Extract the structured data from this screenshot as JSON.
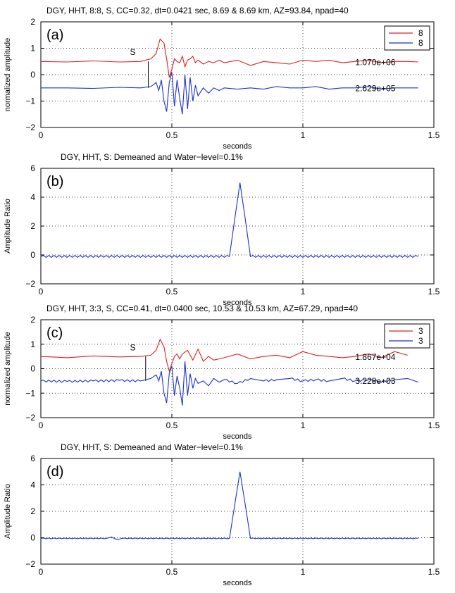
{
  "chart_data": [
    {
      "type": "line",
      "title": "DGY, HHT, 8:8, S, CC=0.32,  dt=0.0421 sec,  8.69 & 8.69 km, AZ=93.84, npad=40",
      "panel_label": "(a)",
      "xlabel": "seconds",
      "ylabel": "normalized amplitude",
      "xlim": [
        0,
        1.5
      ],
      "ylim": [
        -2,
        2
      ],
      "xticks": [
        0,
        0.5,
        1,
        1.5
      ],
      "xtick_labels": [
        "0",
        "0.5",
        "1",
        "1.5"
      ],
      "yticks": [
        -2,
        -1,
        0,
        1,
        2
      ],
      "ytick_labels": [
        "−2",
        "−1",
        "0",
        "1",
        "2"
      ],
      "grid": "dotted",
      "legend": {
        "position": "top-right",
        "entries": [
          {
            "label": "8",
            "color": "#e02020"
          },
          {
            "label": "8",
            "color": "#1f2fd0"
          }
        ]
      },
      "annotations": [
        {
          "text": "S",
          "x": 0.34,
          "y": 0.75
        },
        {
          "text": "1.070e+06",
          "x": 1.2,
          "y": 0.36
        },
        {
          "text": "2.629e+05",
          "x": 1.2,
          "y": -0.62
        }
      ],
      "pick_marker": {
        "x": 0.41,
        "y_from": -0.5,
        "y_to": 0.5
      },
      "series": [
        {
          "color": "#e02020",
          "x": [
            0.0,
            0.1,
            0.2,
            0.3,
            0.38,
            0.42,
            0.44,
            0.455,
            0.47,
            0.48,
            0.49,
            0.5,
            0.51,
            0.52,
            0.53,
            0.54,
            0.55,
            0.56,
            0.57,
            0.58,
            0.59,
            0.6,
            0.62,
            0.64,
            0.66,
            0.68,
            0.7,
            0.75,
            0.8,
            0.85,
            0.9,
            0.95,
            1.0,
            1.05,
            1.1,
            1.15,
            1.2,
            1.25,
            1.3,
            1.35,
            1.4,
            1.44
          ],
          "y": [
            0.5,
            0.48,
            0.52,
            0.48,
            0.5,
            0.6,
            0.8,
            1.35,
            1.2,
            0.6,
            -0.1,
            0.2,
            0.6,
            0.5,
            0.45,
            0.7,
            0.3,
            0.55,
            0.6,
            0.7,
            0.45,
            0.55,
            0.4,
            0.5,
            0.45,
            0.55,
            0.45,
            0.55,
            0.35,
            0.5,
            0.45,
            0.4,
            0.55,
            0.5,
            0.55,
            0.45,
            0.5,
            0.55,
            0.45,
            0.5,
            0.5,
            0.48
          ]
        },
        {
          "color": "#1f2fd0",
          "x": [
            0.0,
            0.1,
            0.2,
            0.3,
            0.38,
            0.42,
            0.44,
            0.45,
            0.46,
            0.47,
            0.48,
            0.49,
            0.5,
            0.51,
            0.52,
            0.53,
            0.54,
            0.55,
            0.56,
            0.57,
            0.58,
            0.59,
            0.6,
            0.62,
            0.64,
            0.66,
            0.68,
            0.7,
            0.75,
            0.8,
            0.85,
            0.9,
            0.95,
            1.0,
            1.05,
            1.1,
            1.15,
            1.2,
            1.25,
            1.3,
            1.35,
            1.4,
            1.44
          ],
          "y": [
            -0.5,
            -0.5,
            -0.52,
            -0.48,
            -0.5,
            -0.45,
            -0.3,
            -0.6,
            -0.2,
            -1.0,
            -1.4,
            -0.3,
            0.1,
            -1.2,
            -0.2,
            -0.9,
            -1.5,
            0.0,
            -1.3,
            -0.1,
            -1.0,
            -0.4,
            -0.8,
            -0.5,
            -0.7,
            -0.5,
            -0.6,
            -0.5,
            -0.55,
            -0.5,
            -0.55,
            -0.45,
            -0.5,
            -0.5,
            -0.45,
            -0.55,
            -0.5,
            -0.5,
            -0.45,
            -0.55,
            -0.5,
            -0.5,
            -0.5
          ]
        }
      ]
    },
    {
      "type": "line",
      "title": "DGY, HHT, S: Demeaned and Water−level=0.1%",
      "panel_label": "(b)",
      "xlabel": "seconds",
      "ylabel": "Amplitude Ratio",
      "xlim": [
        0,
        1.5
      ],
      "ylim": [
        -2,
        6
      ],
      "xticks": [
        0,
        0.5,
        1,
        1.5
      ],
      "xtick_labels": [
        "0",
        "0.5",
        "1",
        "1.5"
      ],
      "yticks": [
        -2,
        0,
        2,
        4,
        6
      ],
      "ytick_labels": [
        "−2",
        "0",
        "2",
        "4",
        "6"
      ],
      "grid": "dotted",
      "series": [
        {
          "color": "#1f2fd0",
          "x": [
            0.0,
            0.72,
            0.74,
            0.76,
            0.78,
            0.8,
            1.44
          ],
          "y": [
            -0.1,
            -0.1,
            2.5,
            5.0,
            2.5,
            -0.1,
            -0.1
          ],
          "oscillation": 0.12
        }
      ]
    },
    {
      "type": "line",
      "title": "DGY, HHT, 3:3, S, CC=0.41,  dt=0.0400 sec,  10.53 & 10.53 km, AZ=67.29, npad=40",
      "panel_label": "(c)",
      "xlabel": "seconds",
      "ylabel": "normalized amplitude",
      "xlim": [
        0,
        1.5
      ],
      "ylim": [
        -2,
        2
      ],
      "xticks": [
        0,
        0.5,
        1,
        1.5
      ],
      "xtick_labels": [
        "0",
        "0.5",
        "1",
        "1.5"
      ],
      "yticks": [
        -2,
        -1,
        0,
        1,
        2
      ],
      "ytick_labels": [
        "−2",
        "−1",
        "0",
        "1",
        "2"
      ],
      "grid": "dotted",
      "legend": {
        "position": "top-right",
        "entries": [
          {
            "label": "3",
            "color": "#e02020"
          },
          {
            "label": "3",
            "color": "#1f2fd0"
          }
        ]
      },
      "annotations": [
        {
          "text": "S",
          "x": 0.34,
          "y": 0.75
        },
        {
          "text": "1.867e+04",
          "x": 1.2,
          "y": 0.36
        },
        {
          "text": "3.228e+03",
          "x": 1.2,
          "y": -0.62
        }
      ],
      "pick_marker": {
        "x": 0.4,
        "y_from": -0.5,
        "y_to": 0.5
      },
      "series": [
        {
          "color": "#e02020",
          "x": [
            0.0,
            0.1,
            0.2,
            0.3,
            0.38,
            0.42,
            0.44,
            0.455,
            0.47,
            0.48,
            0.49,
            0.5,
            0.51,
            0.52,
            0.53,
            0.54,
            0.56,
            0.58,
            0.6,
            0.62,
            0.64,
            0.66,
            0.7,
            0.75,
            0.8,
            0.85,
            0.9,
            0.95,
            1.0,
            1.05,
            1.1,
            1.15,
            1.2,
            1.25,
            1.3,
            1.35,
            1.4
          ],
          "y": [
            0.5,
            0.45,
            0.52,
            0.48,
            0.5,
            0.55,
            0.75,
            1.2,
            0.9,
            0.3,
            -0.1,
            0.2,
            0.5,
            0.6,
            0.4,
            0.6,
            0.75,
            0.35,
            0.8,
            0.3,
            0.5,
            0.35,
            0.45,
            0.6,
            0.4,
            0.5,
            0.55,
            0.45,
            0.7,
            0.55,
            0.5,
            0.45,
            0.5,
            0.6,
            0.45,
            0.7,
            0.55
          ]
        },
        {
          "color": "#1f2fd0",
          "x": [
            0.0,
            0.1,
            0.2,
            0.3,
            0.38,
            0.42,
            0.44,
            0.45,
            0.46,
            0.47,
            0.48,
            0.49,
            0.5,
            0.51,
            0.52,
            0.53,
            0.54,
            0.55,
            0.56,
            0.57,
            0.58,
            0.59,
            0.6,
            0.62,
            0.64,
            0.66,
            0.68,
            0.7,
            0.75,
            0.8,
            0.85,
            0.9,
            0.95,
            1.0,
            1.05,
            1.1,
            1.15,
            1.2,
            1.25,
            1.3,
            1.35,
            1.4,
            1.44
          ],
          "y": [
            -0.5,
            -0.52,
            -0.5,
            -0.48,
            -0.5,
            -0.4,
            -0.25,
            -0.5,
            -0.1,
            -1.0,
            -1.4,
            -0.2,
            0.1,
            -1.1,
            -0.3,
            -0.8,
            -1.5,
            0.3,
            -1.1,
            -0.2,
            -0.8,
            -0.4,
            -0.6,
            -0.5,
            -0.7,
            -0.4,
            -0.55,
            -0.45,
            -0.6,
            -0.4,
            -0.5,
            -0.45,
            -0.4,
            -0.5,
            -0.45,
            -0.5,
            -0.4,
            -0.5,
            -0.45,
            -0.55,
            -0.45,
            -0.4,
            -0.55
          ],
          "oscillation": 0.08
        }
      ]
    },
    {
      "type": "line",
      "title": "DGY, HHT, S: Demeaned and Water−level=0.1%",
      "panel_label": "(d)",
      "xlabel": "seconds",
      "ylabel": "Amplitude Ratio",
      "xlim": [
        0,
        1.5
      ],
      "ylim": [
        -2,
        6
      ],
      "xticks": [
        0,
        0.5,
        1,
        1.5
      ],
      "xtick_labels": [
        "0",
        "0.5",
        "1",
        "1.5"
      ],
      "yticks": [
        -2,
        0,
        2,
        4,
        6
      ],
      "ytick_labels": [
        "−2",
        "0",
        "2",
        "4",
        "6"
      ],
      "grid": "dotted",
      "series": [
        {
          "color": "#1f2fd0",
          "x": [
            0.0,
            0.25,
            0.27,
            0.29,
            0.31,
            0.72,
            0.74,
            0.76,
            0.78,
            0.8,
            1.44
          ],
          "y": [
            -0.05,
            -0.05,
            0.05,
            -0.15,
            -0.05,
            -0.05,
            2.5,
            5.0,
            2.5,
            -0.05,
            -0.05
          ],
          "oscillation": 0.05
        }
      ]
    }
  ]
}
